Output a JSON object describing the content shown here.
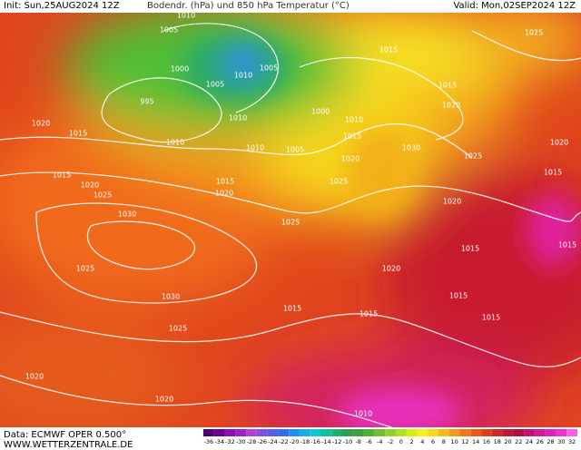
{
  "header": {
    "init": "Init: Sun,25AUG2024 12Z",
    "title": "Bodendr. (hPa) und 850 hPa Temperatur (°C)",
    "valid": "Valid: Mon,02SEP2024 12Z"
  },
  "footer": {
    "data": "Data: ECMWF OPER 0.500°",
    "site": "WWW.WETTERZENTRALE.DE"
  },
  "colorbar": {
    "ticks": [
      -36,
      -34,
      -32,
      -30,
      -28,
      -26,
      -24,
      -22,
      -20,
      -18,
      -16,
      -14,
      -12,
      -10,
      -8,
      -6,
      -4,
      -2,
      0,
      2,
      4,
      6,
      8,
      10,
      12,
      14,
      16,
      18,
      20,
      22,
      24,
      26,
      28,
      30,
      32
    ]
  },
  "isobar_labels": [
    "1010",
    "1005",
    "1000",
    "1005",
    "995",
    "1010",
    "1005",
    "1015",
    "1015",
    "1025",
    "1020",
    "1000",
    "1010",
    "1010",
    "1020",
    "1015",
    "1010",
    "1010",
    "1005",
    "1015",
    "1030",
    "1020",
    "1020",
    "1025",
    "1015",
    "1015",
    "1020",
    "1015",
    "1020",
    "1025",
    "1025",
    "1030",
    "1020",
    "1025",
    "1025",
    "1020",
    "1015",
    "1015",
    "1030",
    "1015",
    "1015",
    "1015",
    "1015",
    "1025",
    "1020",
    "1020",
    "1010"
  ]
}
